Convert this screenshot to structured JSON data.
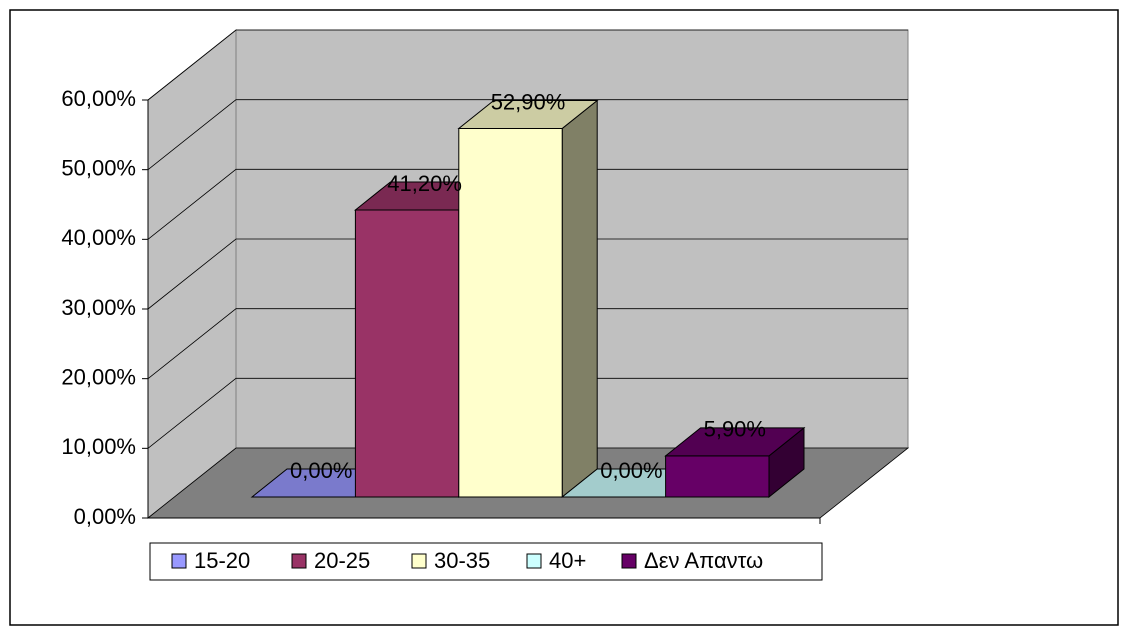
{
  "chart_data": {
    "type": "bar3d",
    "series": [
      {
        "name": "15-20",
        "color": "#9999ff",
        "values": [
          0
        ],
        "value_labels": [
          "0,00%"
        ]
      },
      {
        "name": "20-25",
        "color": "#993366",
        "values": [
          41.2
        ],
        "value_labels": [
          "41,20%"
        ]
      },
      {
        "name": "30-35",
        "color": "#ffffcc",
        "values": [
          52.9
        ],
        "value_labels": [
          "52,90%"
        ]
      },
      {
        "name": "40+",
        "color": "#ccffff",
        "values": [
          0
        ],
        "value_labels": [
          "0,00%"
        ]
      },
      {
        "name": "Δεν Απαντω",
        "color": "#660066",
        "values": [
          5.9
        ],
        "value_labels": [
          "5,90%"
        ]
      }
    ],
    "ylim": [
      0,
      60
    ],
    "yticks": [
      {
        "value": 0,
        "label": "0,00%"
      },
      {
        "value": 10,
        "label": "10,00%"
      },
      {
        "value": 20,
        "label": "20,00%"
      },
      {
        "value": 30,
        "label": "30,00%"
      },
      {
        "value": 40,
        "label": "40,00%"
      },
      {
        "value": 50,
        "label": "50,00%"
      },
      {
        "value": 60,
        "label": "60,00%"
      }
    ],
    "grid": true,
    "legend": "bottom"
  }
}
